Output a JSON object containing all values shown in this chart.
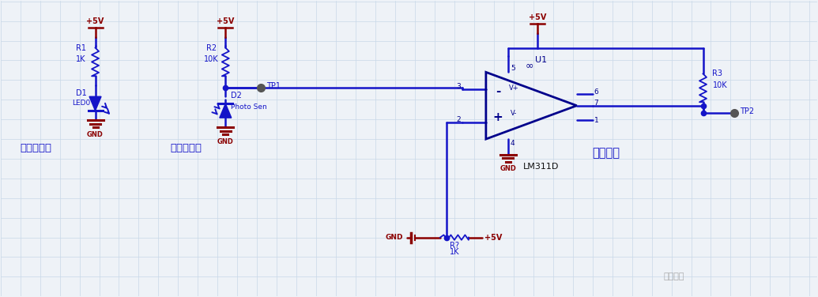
{
  "bg_color": "#eef2f7",
  "grid_color": "#c8d8e8",
  "wire_color": "#1414c8",
  "wire_color_dark": "#00008b",
  "gnd_color": "#8b0000",
  "vcc_color": "#8b0000",
  "label_blue": "#1414c8",
  "label_red": "#8b0000",
  "label_black": "#111111",
  "label_cn_blue": "#1414c8",
  "figsize": [
    10.35,
    3.76
  ],
  "dpi": 100,
  "xlim": [
    0,
    103.5
  ],
  "ylim": [
    0,
    37.6
  ]
}
